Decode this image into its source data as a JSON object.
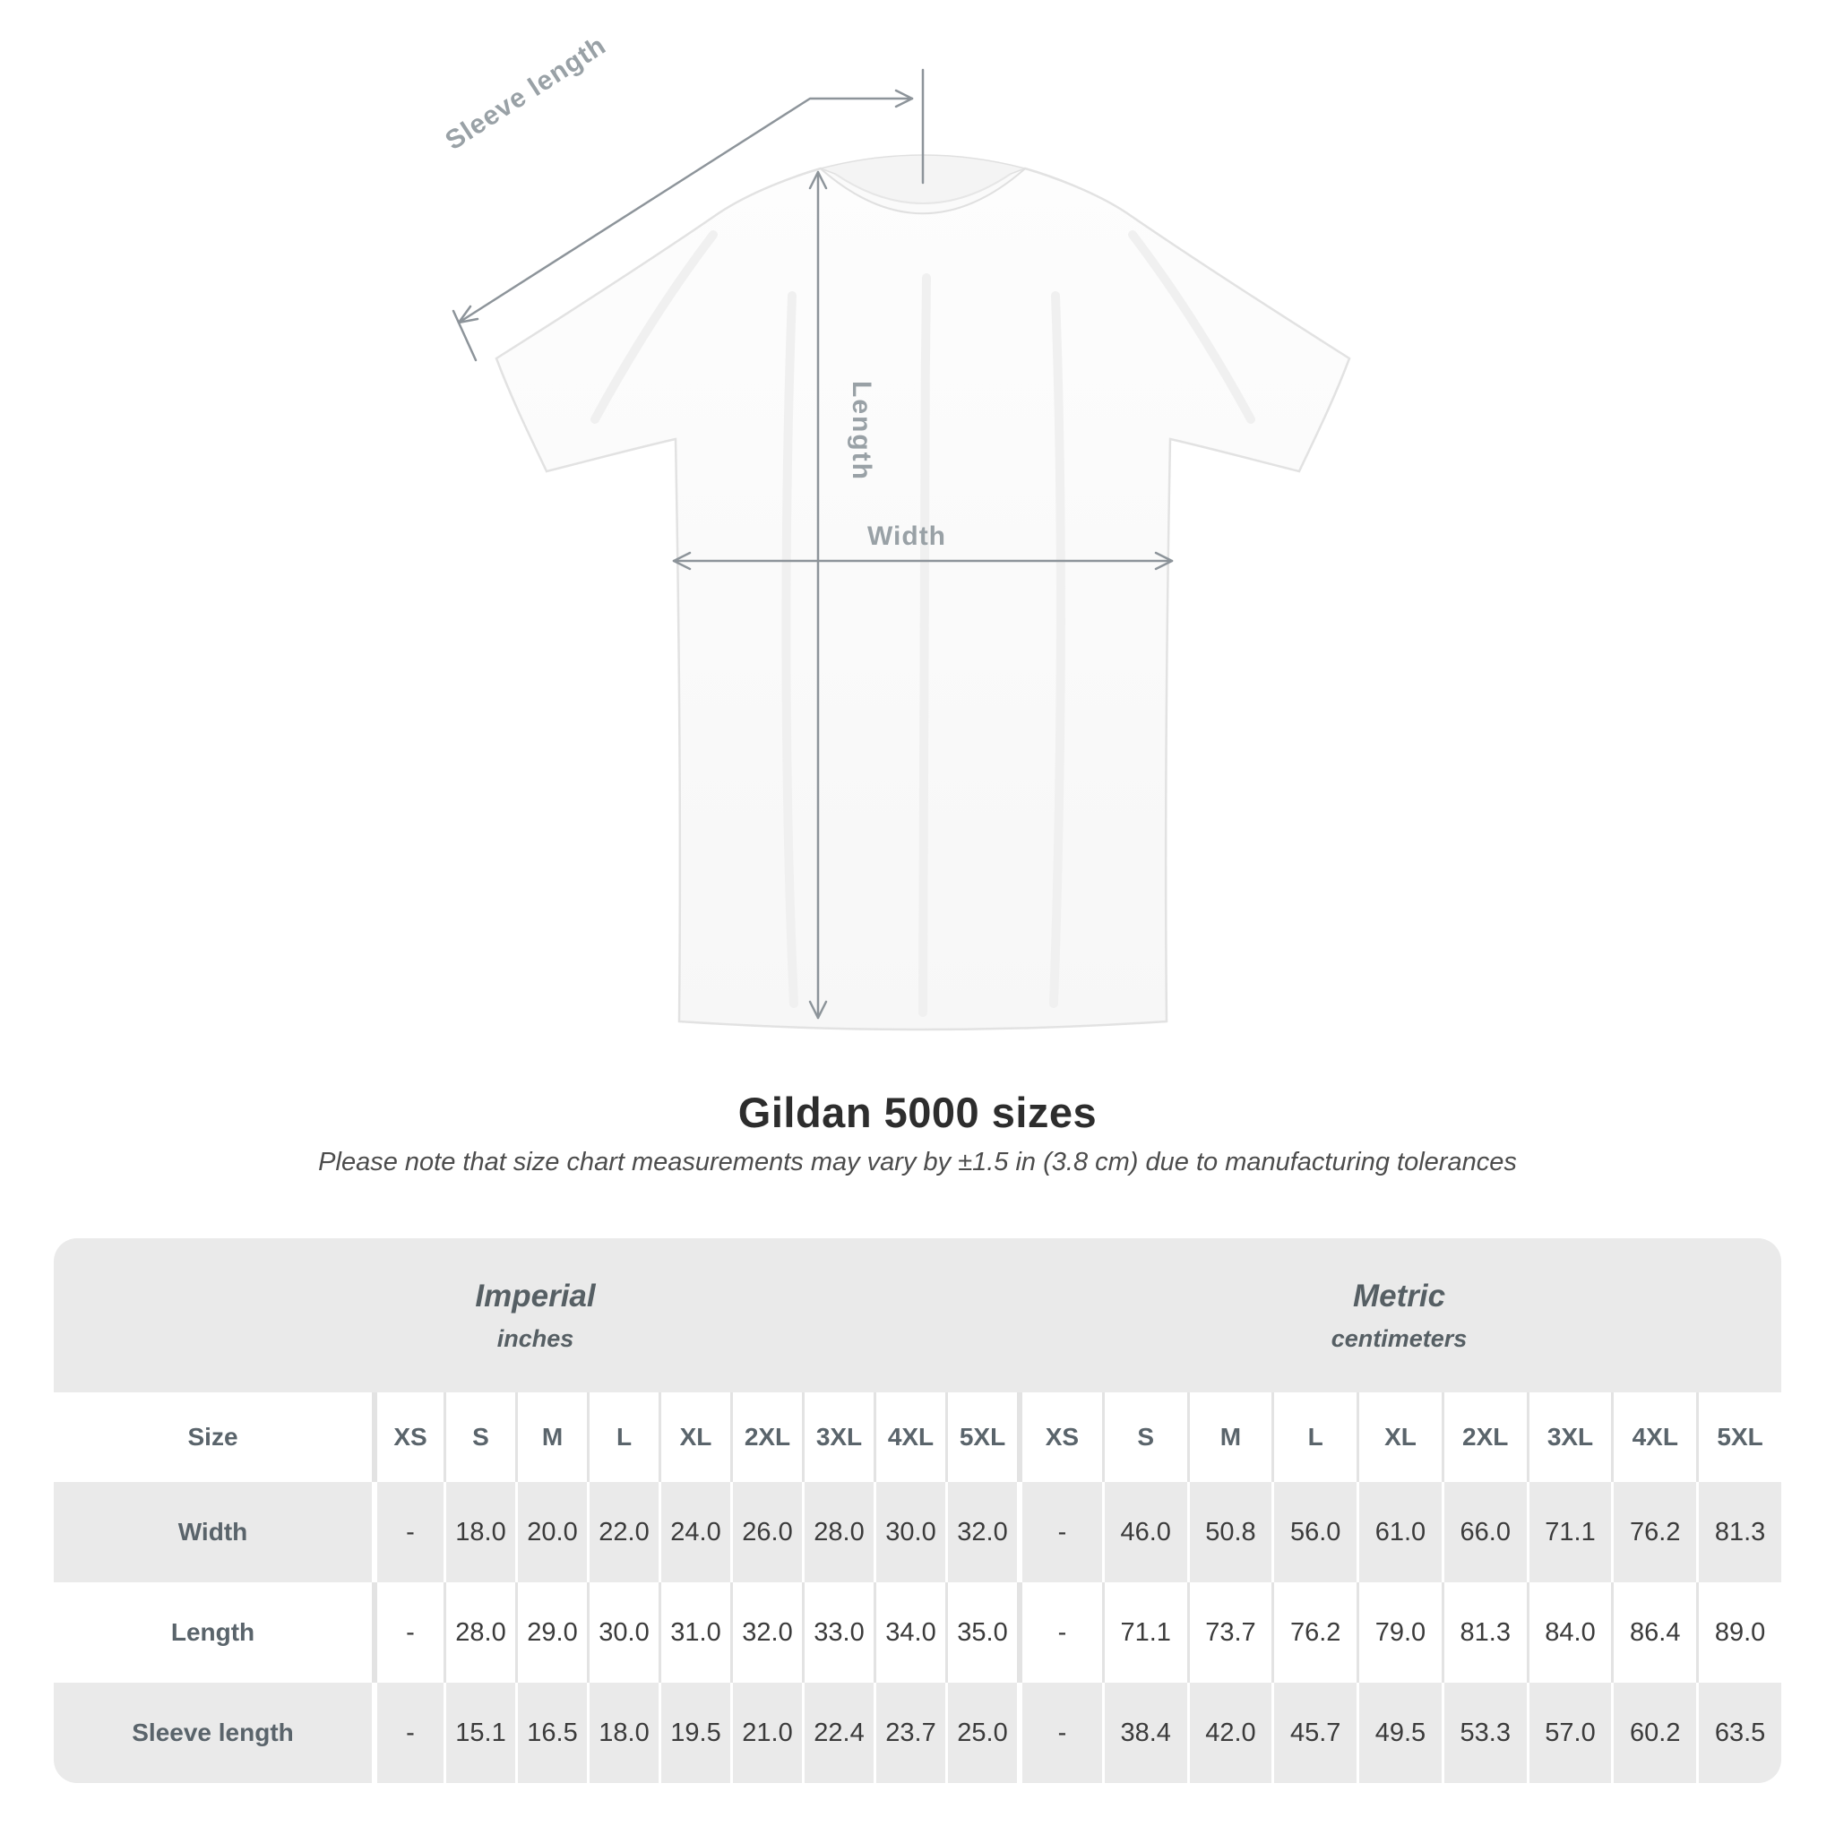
{
  "diagram": {
    "sleeve_label": "Sleeve length",
    "length_label": "Length",
    "width_label": "Width"
  },
  "heading": {
    "title": "Gildan 5000 sizes",
    "subtitle": "Please note that size chart measurements may vary by ±1.5 in (3.8 cm) due to manufacturing tolerances"
  },
  "table": {
    "size_column_label": "Size",
    "groups": [
      {
        "name": "Imperial",
        "unit": "inches"
      },
      {
        "name": "Metric",
        "unit": "centimeters"
      }
    ],
    "sizes": [
      "XS",
      "S",
      "M",
      "L",
      "XL",
      "2XL",
      "3XL",
      "4XL",
      "5XL"
    ],
    "rows": [
      {
        "label": "Width",
        "imperial": [
          "-",
          "18.0",
          "20.0",
          "22.0",
          "24.0",
          "26.0",
          "28.0",
          "30.0",
          "32.0"
        ],
        "metric": [
          "-",
          "46.0",
          "50.8",
          "56.0",
          "61.0",
          "66.0",
          "71.1",
          "76.2",
          "81.3"
        ]
      },
      {
        "label": "Length",
        "imperial": [
          "-",
          "28.0",
          "29.0",
          "30.0",
          "31.0",
          "32.0",
          "33.0",
          "34.0",
          "35.0"
        ],
        "metric": [
          "-",
          "71.1",
          "73.7",
          "76.2",
          "79.0",
          "81.3",
          "84.0",
          "86.4",
          "89.0"
        ]
      },
      {
        "label": "Sleeve length",
        "imperial": [
          "-",
          "15.1",
          "16.5",
          "18.0",
          "19.5",
          "21.0",
          "22.4",
          "23.7",
          "25.0"
        ],
        "metric": [
          "-",
          "38.4",
          "42.0",
          "45.7",
          "49.5",
          "53.3",
          "57.0",
          "60.2",
          "63.5"
        ]
      }
    ]
  },
  "colors": {
    "band_background": "#eaeaea",
    "alt_row_background": "#eaeaea",
    "row_background": "#ffffff",
    "header_text": "#5a646b",
    "value_text": "#3b3b3b",
    "annotation_line": "#8d949a",
    "annotation_text": "#99a1a6",
    "title_text": "#2d2d2d",
    "subtitle_text": "#4c4c4c"
  }
}
